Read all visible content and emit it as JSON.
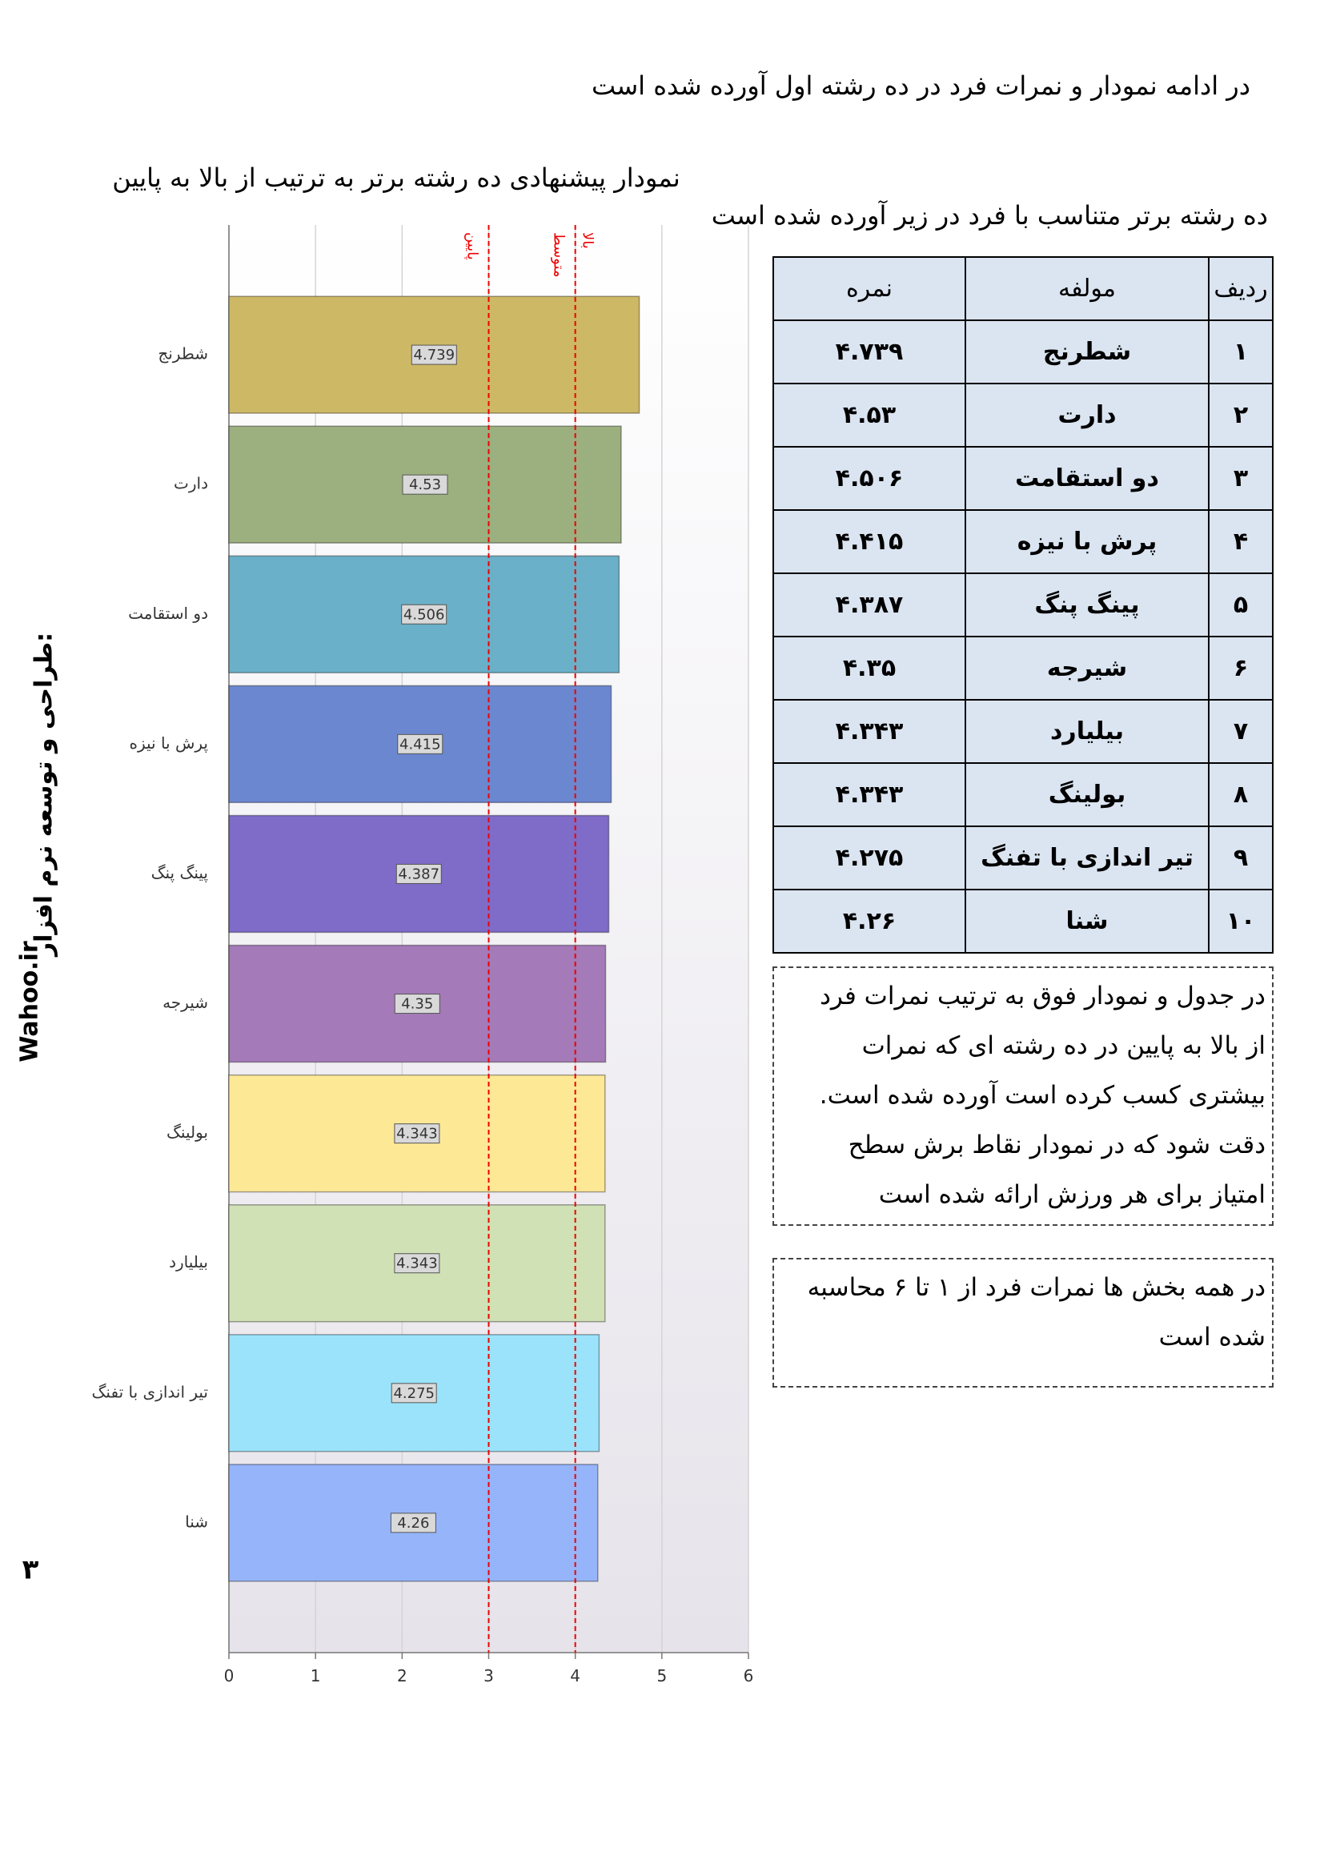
{
  "header": {
    "title": "در ادامه نمودار و نمرات فرد در ده رشته اول آورده شده است"
  },
  "sidebar": {
    "credit": "طراحی و توسعه نرم افزار:",
    "site": "Wahoo.ir",
    "page_number": "۳"
  },
  "chart_data": {
    "type": "hbar",
    "title": "نمودار پیشنهادی ده رشته برتر به ترتیب از بالا به پایین",
    "categories": [
      "شطرنج",
      "دارت",
      "دو استقامت",
      "پرش با نیزه",
      "پینگ پنگ",
      "شیرجه",
      "بولینگ",
      "بیلیارد",
      "تیر اندازی با تفنگ",
      "شنا"
    ],
    "values": [
      4.739,
      4.53,
      4.506,
      4.415,
      4.387,
      4.35,
      4.343,
      4.343,
      4.275,
      4.26
    ],
    "colors": [
      "#cdb865",
      "#9caf7f",
      "#6ab0c8",
      "#6b87d0",
      "#7f6bc8",
      "#a47ab8",
      "#fde896",
      "#d0e2b5",
      "#9be3fa",
      "#95b4fa"
    ],
    "xlim": [
      0,
      6
    ],
    "xticks": [
      0,
      1,
      2,
      3,
      4,
      5,
      6
    ],
    "grid": true,
    "reference_lines": [
      {
        "value": 3,
        "label": "پایین"
      },
      {
        "value": 4,
        "label": "متوسط"
      }
    ],
    "upper_label": "بالا"
  },
  "table": {
    "caption": "ده رشته برتر متناسب با فرد در زیر آورده شده است",
    "header": [
      "ردیف",
      "مولفه",
      "نمره"
    ],
    "rows": [
      [
        "۱",
        "شطرنج",
        "۴.۷۳۹"
      ],
      [
        "۲",
        "دارت",
        "۴.۵۳"
      ],
      [
        "۳",
        "دو استقامت",
        "۴.۵۰۶"
      ],
      [
        "۴",
        "پرش با نیزه",
        "۴.۴۱۵"
      ],
      [
        "۵",
        "پینگ پنگ",
        "۴.۳۸۷"
      ],
      [
        "۶",
        "شیرجه",
        "۴.۳۵"
      ],
      [
        "۷",
        "بیلیارد",
        "۴.۳۴۳"
      ],
      [
        "۸",
        "بولینگ",
        "۴.۳۴۳"
      ],
      [
        "۹",
        "تیر اندازی با تفنگ",
        "۴.۲۷۵"
      ],
      [
        "۱۰",
        "شنا",
        "۴.۲۶"
      ]
    ]
  },
  "notes": [
    [
      "در جدول و نمودار فوق به ترتیب نمرات فرد",
      "از بالا به پایین در ده رشته ای که نمرات",
      "بیشتری کسب کرده است آورده شده است.",
      "دقت شود که در نمودار نقاط برش سطح",
      "امتیاز برای هر ورزش ارائه شده است"
    ],
    [
      "در همه بخش ها نمرات فرد از ۱ تا ۶ محاسبه",
      "شده است"
    ]
  ]
}
